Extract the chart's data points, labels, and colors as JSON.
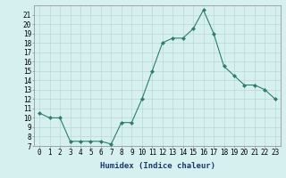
{
  "xlabel": "Humidex (Indice chaleur)",
  "ylabel": "",
  "x": [
    0,
    1,
    2,
    3,
    4,
    5,
    6,
    7,
    8,
    9,
    10,
    11,
    12,
    13,
    14,
    15,
    16,
    17,
    18,
    19,
    20,
    21,
    22,
    23
  ],
  "y": [
    10.5,
    10.0,
    10.0,
    7.5,
    7.5,
    7.5,
    7.5,
    7.2,
    9.5,
    9.5,
    12.0,
    15.0,
    18.0,
    18.5,
    18.5,
    19.5,
    21.5,
    19.0,
    15.5,
    14.5,
    13.5,
    13.5,
    13.0,
    12.0
  ],
  "line_color": "#2e7d6e",
  "marker": "D",
  "marker_size": 2,
  "bg_color": "#d6f0ef",
  "grid_color": "#b8d8d8",
  "ylim": [
    7,
    22
  ],
  "xlim": [
    -0.5,
    23.5
  ],
  "yticks": [
    7,
    8,
    9,
    10,
    11,
    12,
    13,
    14,
    15,
    16,
    17,
    18,
    19,
    20,
    21
  ],
  "xticks": [
    0,
    1,
    2,
    3,
    4,
    5,
    6,
    7,
    8,
    9,
    10,
    11,
    12,
    13,
    14,
    15,
    16,
    17,
    18,
    19,
    20,
    21,
    22,
    23
  ],
  "tick_fontsize": 5.5,
  "label_fontsize": 6.5,
  "xlabel_color": "#1a3a6e",
  "spine_color": "#888888",
  "linewidth": 0.8
}
